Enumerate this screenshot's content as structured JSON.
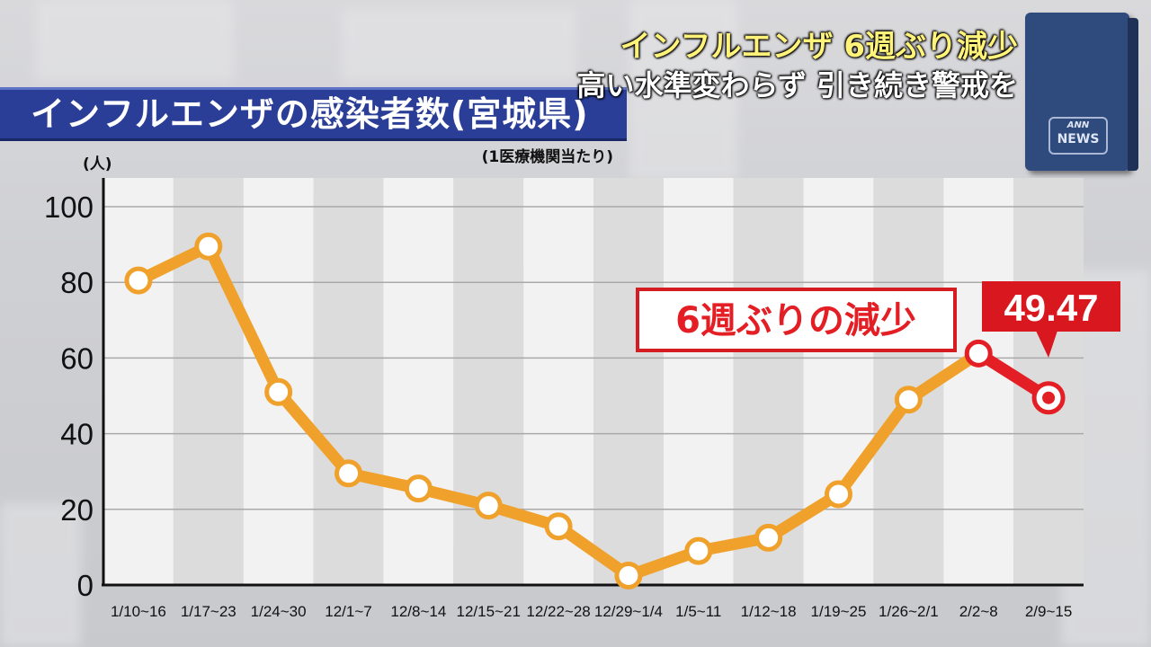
{
  "title": "インフルエンザの感染者数(宮城県)",
  "unit_label": "(人)",
  "note": "(1医療機関当たり)",
  "headline": {
    "line1": "インフルエンザ 6週ぶり減少",
    "line2": "高い水準変わらず 引き続き警戒を"
  },
  "logo": {
    "top": "ANN",
    "bottom": "NEWS"
  },
  "callout": "6週ぶりの減少",
  "last_value_label": "49.47",
  "colors": {
    "line": "#f0a12b",
    "highlight": "#e31e24",
    "banner": "#2a3e97"
  },
  "chart_data": {
    "type": "line",
    "categories": [
      "1/10~16",
      "1/17~23",
      "1/24~30",
      "12/1~7",
      "12/8~14",
      "12/15~21",
      "12/22~28",
      "12/29~1/4",
      "1/5~11",
      "1/12~18",
      "1/19~25",
      "1/26~2/1",
      "2/2~8",
      "2/9~15"
    ],
    "values": [
      80.5,
      89.5,
      51,
      29.5,
      25.5,
      21,
      15.5,
      2.5,
      9,
      12.5,
      24,
      49,
      61.2,
      49.47
    ],
    "ylim": [
      0,
      100
    ],
    "yticks": [
      0,
      20,
      40,
      60,
      80,
      100
    ],
    "ylabel": "(人)",
    "grid": true,
    "highlight_last_segment": true
  }
}
